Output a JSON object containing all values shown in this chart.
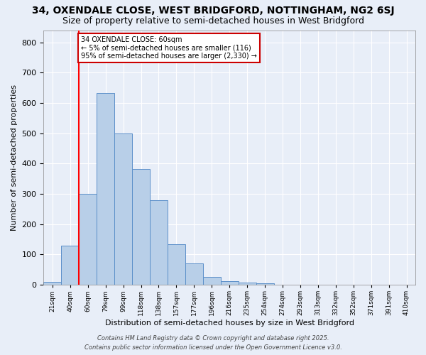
{
  "title": "34, OXENDALE CLOSE, WEST BRIDGFORD, NOTTINGHAM, NG2 6SJ",
  "subtitle": "Size of property relative to semi-detached houses in West Bridgford",
  "xlabel": "Distribution of semi-detached houses by size in West Bridgford",
  "ylabel": "Number of semi-detached properties",
  "footnote1": "Contains HM Land Registry data © Crown copyright and database right 2025.",
  "footnote2": "Contains public sector information licensed under the Open Government Licence v3.0.",
  "categories": [
    "21sqm",
    "40sqm",
    "60sqm",
    "79sqm",
    "99sqm",
    "118sqm",
    "138sqm",
    "157sqm",
    "177sqm",
    "196sqm",
    "216sqm",
    "235sqm",
    "254sqm",
    "274sqm",
    "293sqm",
    "313sqm",
    "332sqm",
    "352sqm",
    "371sqm",
    "391sqm",
    "410sqm"
  ],
  "values": [
    10,
    128,
    300,
    632,
    500,
    383,
    278,
    133,
    70,
    26,
    13,
    8,
    5,
    0,
    0,
    0,
    0,
    0,
    0,
    0,
    0
  ],
  "bar_color": "#b8cfe8",
  "bar_edge_color": "#5b8fc9",
  "red_line_index": 2,
  "annotation_title": "34 OXENDALE CLOSE: 60sqm",
  "annotation_line1": "← 5% of semi-detached houses are smaller (116)",
  "annotation_line2": "95% of semi-detached houses are larger (2,330) →",
  "annotation_box_facecolor": "#ffffff",
  "annotation_box_edgecolor": "#cc0000",
  "ylim": [
    0,
    840
  ],
  "yticks": [
    0,
    100,
    200,
    300,
    400,
    500,
    600,
    700,
    800
  ],
  "background_color": "#e8eef8",
  "grid_color": "#ffffff",
  "title_fontsize": 10,
  "subtitle_fontsize": 9,
  "bar_width": 1.0
}
